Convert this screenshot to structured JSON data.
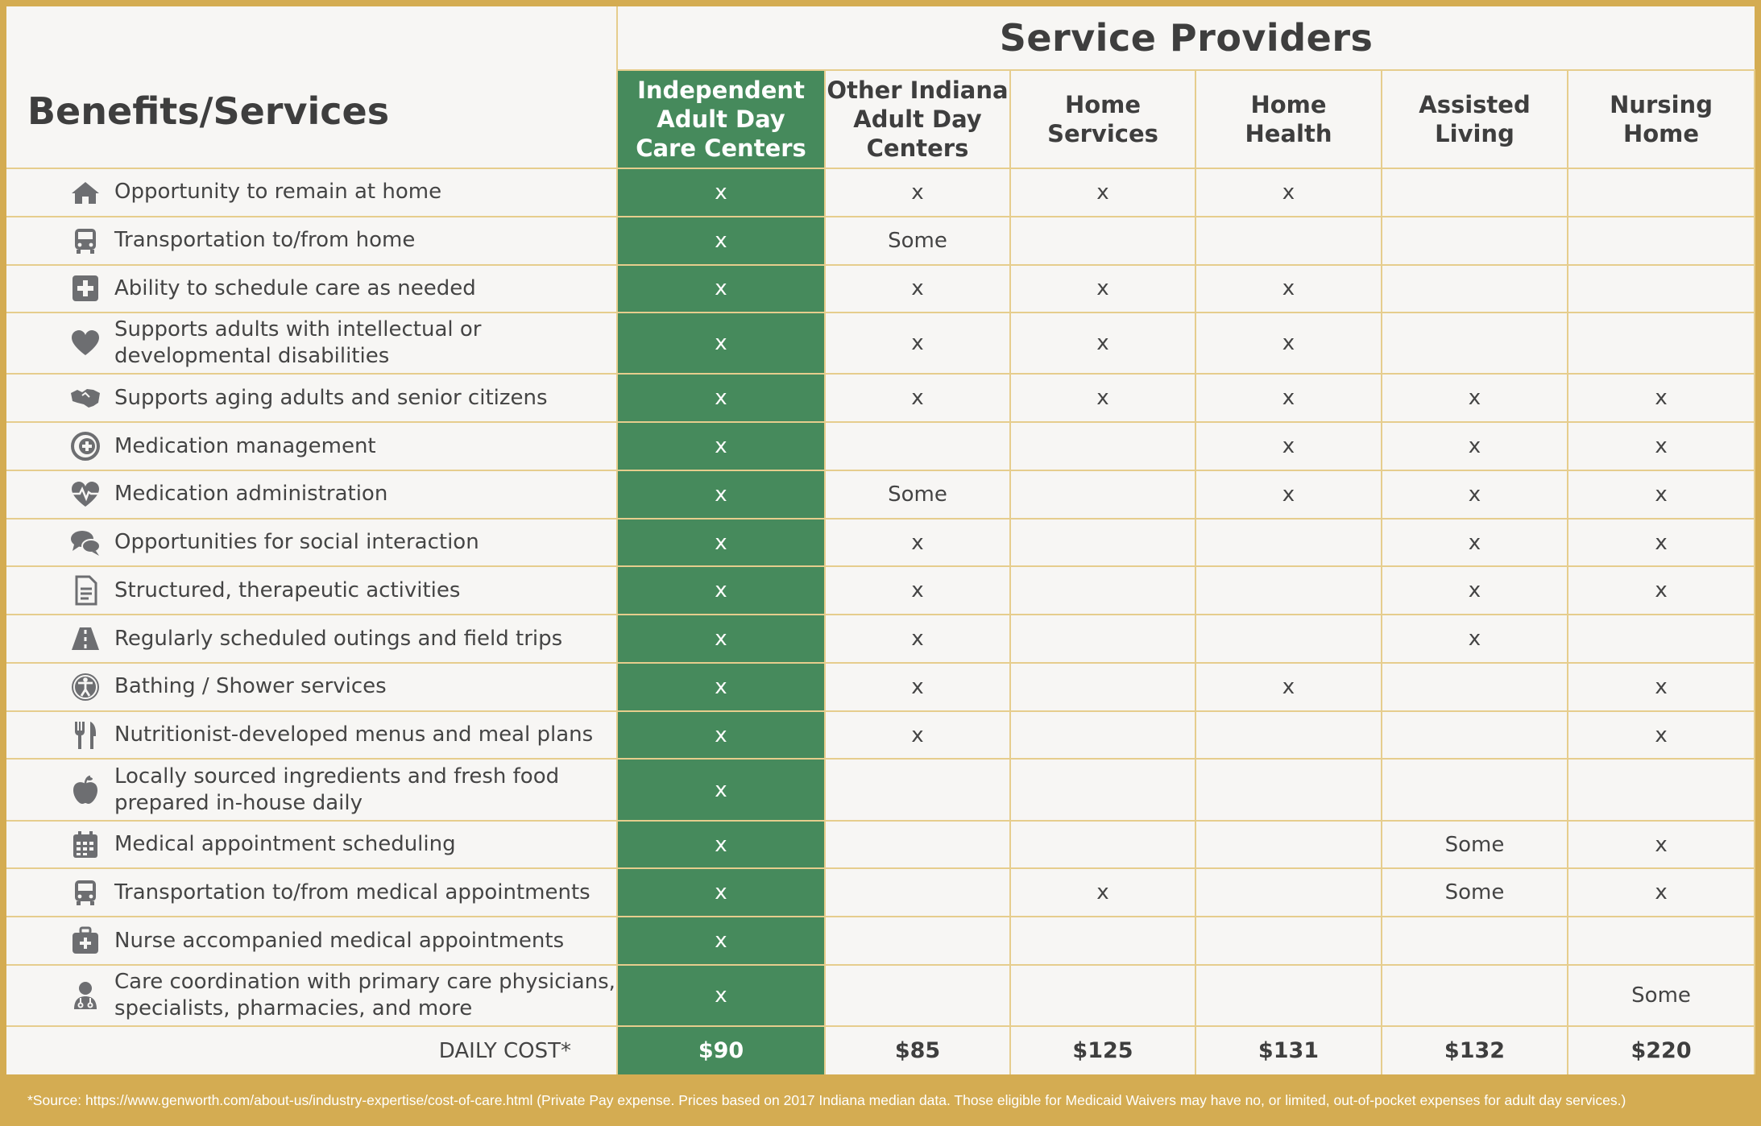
{
  "header": {
    "title": "Service Providers",
    "benefits_heading": "Benefits/Services",
    "columns": [
      {
        "line1": "Independent",
        "line2": "Adult Day",
        "line3": "Care Centers"
      },
      {
        "line1": "Other Indiana",
        "line2": "Adult Day",
        "line3": "Centers"
      },
      {
        "line1": "Home",
        "line2": "Services",
        "line3": ""
      },
      {
        "line1": "Home",
        "line2": "Health",
        "line3": ""
      },
      {
        "line1": "Assisted",
        "line2": "Living",
        "line3": ""
      },
      {
        "line1": "Nursing",
        "line2": "Home",
        "line3": ""
      }
    ]
  },
  "rows": [
    {
      "icon": "home-icon",
      "label": "Opportunity to remain at home",
      "cells": [
        "x",
        "x",
        "x",
        "x",
        "",
        ""
      ]
    },
    {
      "icon": "bus-icon",
      "label": "Transportation to/from home",
      "cells": [
        "x",
        "Some",
        "",
        "",
        "",
        ""
      ]
    },
    {
      "icon": "medical-plus-icon",
      "label": "Ability to schedule care as needed",
      "cells": [
        "x",
        "x",
        "x",
        "x",
        "",
        ""
      ]
    },
    {
      "icon": "heart-icon",
      "label": "Supports adults with intellectual or developmental disabilities",
      "cells": [
        "x",
        "x",
        "x",
        "x",
        "",
        ""
      ]
    },
    {
      "icon": "handshake-icon",
      "label": "Supports aging adults and senior citizens",
      "cells": [
        "x",
        "x",
        "x",
        "x",
        "x",
        "x"
      ]
    },
    {
      "icon": "medication-icon",
      "label": "Medication management",
      "cells": [
        "x",
        "",
        "",
        "x",
        "x",
        "x"
      ]
    },
    {
      "icon": "heartbeat-icon",
      "label": "Medication administration",
      "cells": [
        "x",
        "Some",
        "",
        "x",
        "x",
        "x"
      ]
    },
    {
      "icon": "chat-bubbles-icon",
      "label": "Opportunities for social interaction",
      "cells": [
        "x",
        "x",
        "",
        "",
        "x",
        "x"
      ]
    },
    {
      "icon": "document-icon",
      "label": "Structured, therapeutic activities",
      "cells": [
        "x",
        "x",
        "",
        "",
        "x",
        "x"
      ]
    },
    {
      "icon": "road-icon",
      "label": "Regularly scheduled outings and field trips",
      "cells": [
        "x",
        "x",
        "",
        "",
        "x",
        ""
      ]
    },
    {
      "icon": "accessibility-icon",
      "label": "Bathing / Shower services",
      "cells": [
        "x",
        "x",
        "",
        "x",
        "",
        "x"
      ]
    },
    {
      "icon": "utensils-icon",
      "label": "Nutritionist-developed menus and meal plans",
      "cells": [
        "x",
        "x",
        "",
        "",
        "",
        "x"
      ]
    },
    {
      "icon": "apple-icon",
      "label": "Locally sourced ingredients and fresh food prepared in-house daily",
      "cells": [
        "x",
        "",
        "",
        "",
        "",
        ""
      ]
    },
    {
      "icon": "calendar-icon",
      "label": "Medical appointment scheduling",
      "cells": [
        "x",
        "",
        "",
        "",
        "Some",
        "x"
      ]
    },
    {
      "icon": "bus-icon",
      "label": "Transportation to/from medical appointments",
      "cells": [
        "x",
        "",
        "x",
        "",
        "Some",
        "x"
      ]
    },
    {
      "icon": "medical-kit-icon",
      "label": "Nurse accompanied medical appointments",
      "cells": [
        "x",
        "",
        "",
        "",
        "",
        ""
      ]
    },
    {
      "icon": "doctor-icon",
      "label": "Care coordination with primary care physicians, specialists, pharmacies, and more",
      "cells": [
        "x",
        "",
        "",
        "",
        "",
        "Some"
      ]
    }
  ],
  "daily_cost": {
    "label": "DAILY COST*",
    "values": [
      "$90",
      "$85",
      "$125",
      "$131",
      "$132",
      "$220"
    ]
  },
  "footnote": "*Source: https://www.genworth.com/about-us/industry-expertise/cost-of-care.html (Private Pay expense. Prices based on 2017 Indiana median data. Those eligible for Medicaid Waivers may have no, or limited, out-of-pocket expenses for adult day services.)",
  "colors": {
    "border_gold": "#d4ac52",
    "featured_green": "#468a5c",
    "icon_gray": "#6d6e71"
  }
}
